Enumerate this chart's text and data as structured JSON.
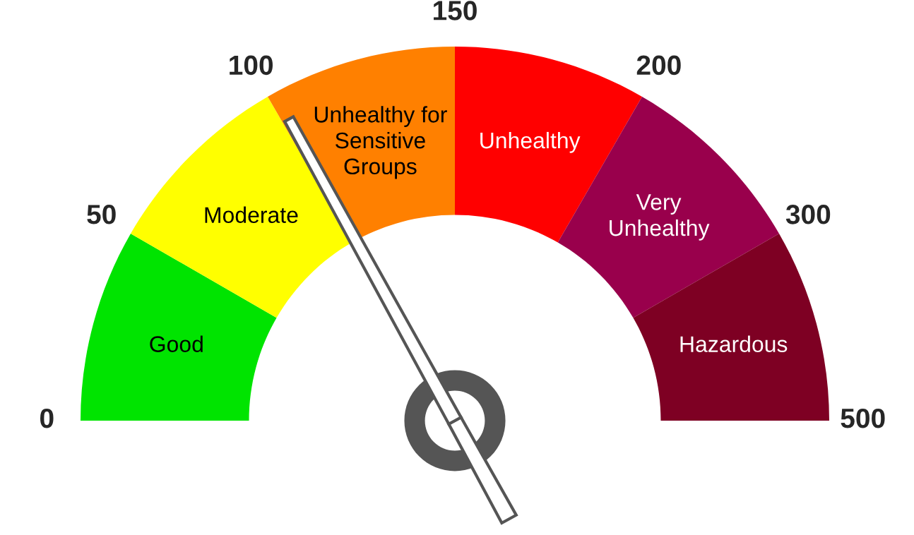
{
  "chart_data": {
    "type": "donut",
    "categories": [
      "Good",
      "Moderate",
      "Unhealthy for\nSensitive\nGroups",
      "Unhealthy",
      "Very\nUnhealthy",
      "Hazardous"
    ],
    "values": [
      16.667,
      16.667,
      16.667,
      16.667,
      16.667,
      16.665
    ],
    "colors": [
      "#00e400",
      "#ffff00",
      "#ff8000",
      "#ff0000",
      "#99004c",
      "#7e0023"
    ],
    "needle": "Unhealthy for\nSensitive\nGroups",
    "annotations": [
      "0",
      "50",
      "100",
      "150",
      "200",
      "300",
      "500"
    ]
  }
}
